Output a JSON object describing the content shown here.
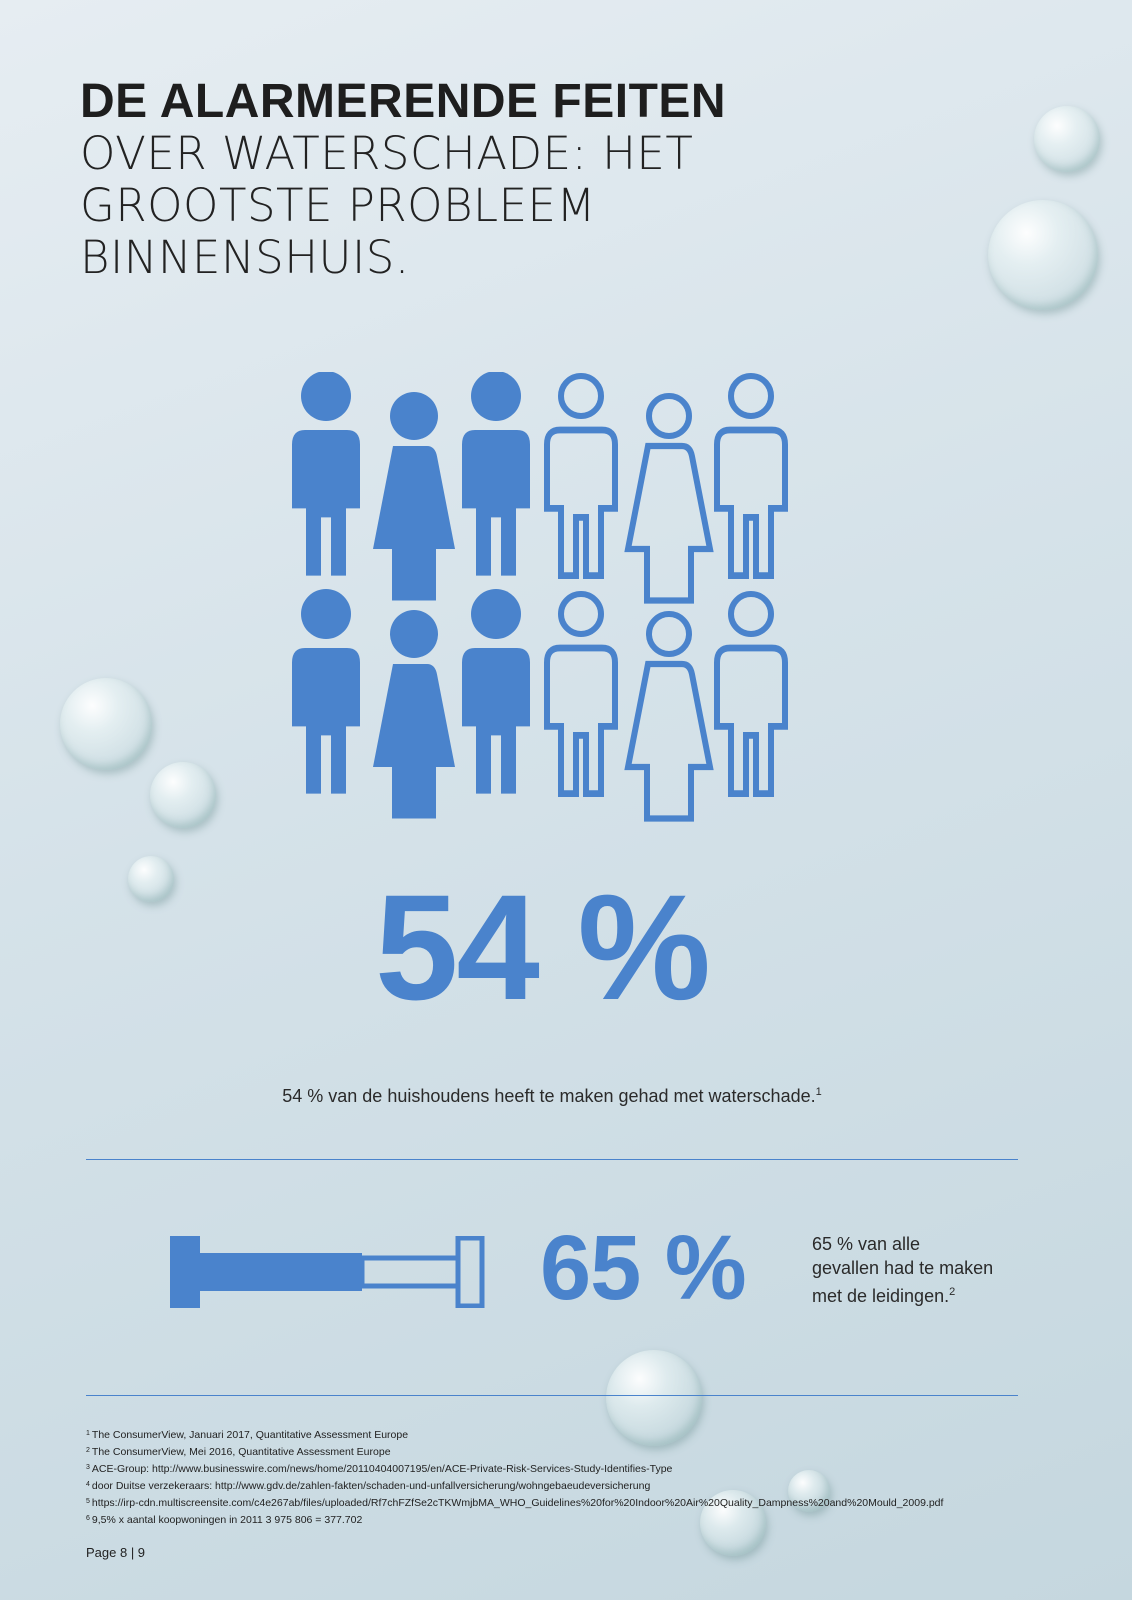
{
  "title": {
    "bold": "DE ALARMERENDE FEITEN",
    "light_lines": [
      "OVER WATERSCHADE: HET",
      "GROOTSTE PROBLEEM",
      "BINNENSHUIS."
    ]
  },
  "stat1": {
    "value": "54 %",
    "text": "54 % van de huishoudens heeft te maken gehad met waterschade.",
    "ref": "1",
    "people_total": 12,
    "people_filled": 6
  },
  "stat2": {
    "value": "65 %",
    "text_lines": [
      "65 % van alle",
      "gevallen had te maken",
      "met de leidingen."
    ],
    "ref": "2"
  },
  "footnotes": [
    {
      "n": "1",
      "text": "The ConsumerView, Januari 2017, Quantitative Assessment Europe"
    },
    {
      "n": "2",
      "text": "The ConsumerView, Mei 2016, Quantitative Assessment Europe"
    },
    {
      "n": "3",
      "text": "ACE-Group: http://www.businesswire.com/news/home/20110404007195/en/ACE-Private-Risk-Services-Study-Identifies-Type"
    },
    {
      "n": "4",
      "text": "door Duitse verzekeraars: http://www.gdv.de/zahlen-fakten/schaden-und-unfallversicherung/wohngebaeudeversicherung"
    },
    {
      "n": "5",
      "text": "https://irp-cdn.multiscreensite.com/c4e267ab/files/uploaded/Rf7chFZfSe2cTKWmjbMA_WHO_Guidelines%20for%20Indoor%20Air%20Quality_Dampness%20and%20Mould_2009.pdf"
    },
    {
      "n": "6",
      "text": "9,5% x aantal koopwoningen in 2011 3 975 806 = 377.702"
    }
  ],
  "page": "Page 8 | 9",
  "colors": {
    "accent": "#4a83cc",
    "text": "#1f1f1f"
  },
  "icons": {
    "people": "person-icon",
    "pipe": "pipe-icon"
  }
}
